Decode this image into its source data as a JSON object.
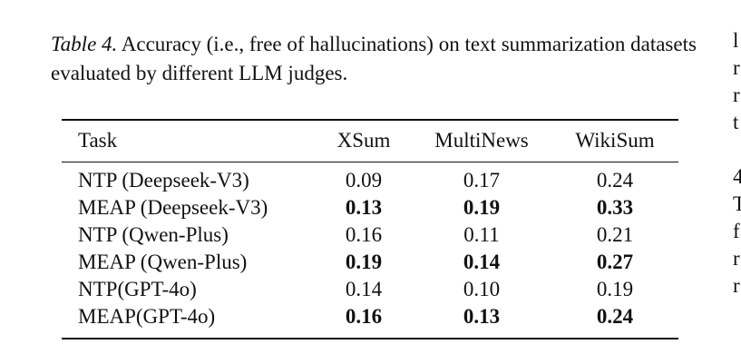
{
  "caption": {
    "label": "Table 4.",
    "text": " Accuracy (i.e., free of hallucinations) on text summarization datasets evaluated by different LLM judges."
  },
  "table": {
    "headers": [
      "Task",
      "XSum",
      "MultiNews",
      "WikiSum"
    ],
    "rows": [
      {
        "task": "NTP (Deepseek-V3)",
        "xsum": "0.09",
        "multinews": "0.17",
        "wikisum": "0.24",
        "bold": false
      },
      {
        "task": "MEAP (Deepseek-V3)",
        "xsum": "0.13",
        "multinews": "0.19",
        "wikisum": "0.33",
        "bold": true
      },
      {
        "task": "NTP (Qwen-Plus)",
        "xsum": "0.16",
        "multinews": "0.11",
        "wikisum": "0.21",
        "bold": false
      },
      {
        "task": "MEAP (Qwen-Plus)",
        "xsum": "0.19",
        "multinews": "0.14",
        "wikisum": "0.27",
        "bold": true
      },
      {
        "task": "NTP(GPT-4o)",
        "xsum": "0.14",
        "multinews": "0.10",
        "wikisum": "0.19",
        "bold": false
      },
      {
        "task": "MEAP(GPT-4o)",
        "xsum": "0.16",
        "multinews": "0.13",
        "wikisum": "0.24",
        "bold": true
      }
    ]
  },
  "margin_fragments": [
    "l",
    "r",
    "r",
    "t",
    "",
    "4",
    "T",
    "f",
    "r",
    "r"
  ]
}
